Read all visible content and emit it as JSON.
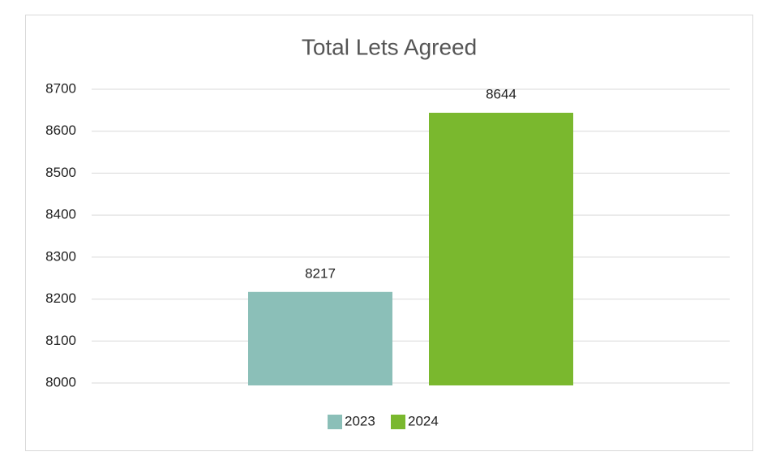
{
  "chart_data": {
    "type": "bar",
    "title": "Total Lets Agreed",
    "categories": [
      null
    ],
    "series": [
      {
        "name": "2023",
        "color": "#8bbfb8",
        "values": [
          8217
        ]
      },
      {
        "name": "2024",
        "color": "#7ab82e",
        "values": [
          8644
        ]
      }
    ],
    "ylim": [
      8000,
      8700
    ],
    "yticks": [
      8000,
      8100,
      8200,
      8300,
      8400,
      8500,
      8600,
      8700
    ],
    "grid": true,
    "legend": "bottom"
  }
}
